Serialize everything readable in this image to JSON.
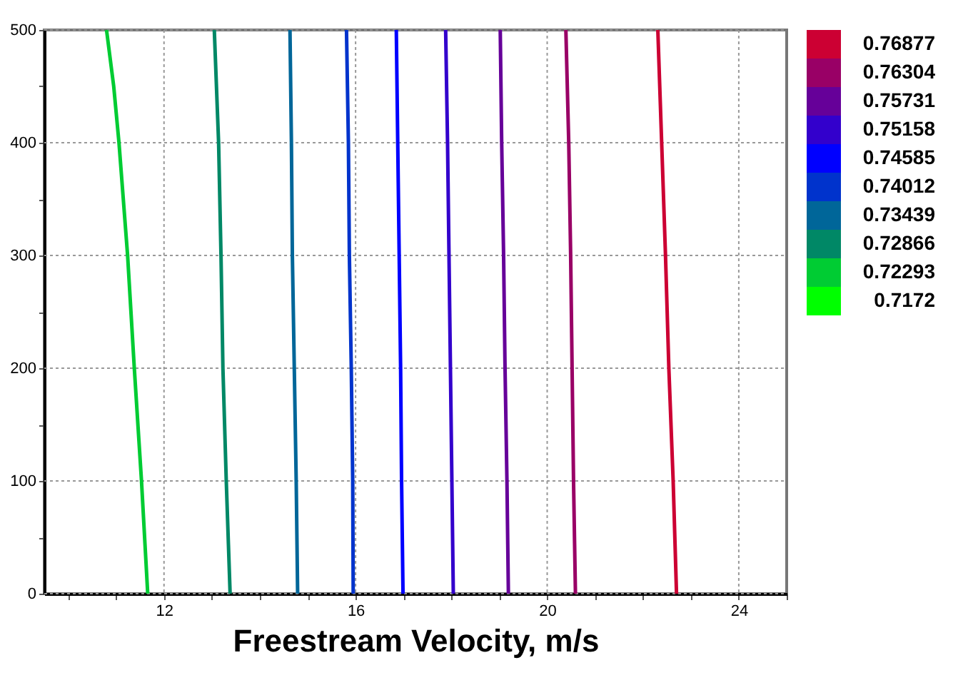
{
  "chart_data": {
    "type": "line",
    "xlabel": "Freestream Velocity, m/s",
    "xlim": [
      9.5,
      25
    ],
    "ylim": [
      0,
      500
    ],
    "xticks": [
      {
        "value": 10,
        "label": null
      },
      {
        "value": 11,
        "label": null
      },
      12,
      {
        "value": 13,
        "label": null
      },
      {
        "value": 14,
        "label": null
      },
      {
        "value": 15,
        "label": null
      },
      16,
      {
        "value": 17,
        "label": null
      },
      {
        "value": 18,
        "label": null
      },
      {
        "value": 19,
        "label": null
      },
      20,
      {
        "value": 21,
        "label": null
      },
      {
        "value": 22,
        "label": null
      },
      {
        "value": 23,
        "label": null
      },
      24,
      {
        "value": 25,
        "label": null
      }
    ],
    "yticks": [
      0,
      {
        "value": 50,
        "label": null
      },
      100,
      {
        "value": 150,
        "label": null
      },
      200,
      {
        "value": 250,
        "label": null
      },
      300,
      {
        "value": 350,
        "label": null
      },
      400,
      {
        "value": 450,
        "label": null
      },
      500
    ],
    "grid": true,
    "legend": "right",
    "marker": "none",
    "line_style": "solid",
    "series": [
      {
        "name": "0.76877",
        "color": "#cc0033",
        "x": [
          22.7,
          22.63,
          22.54,
          22.47,
          22.39,
          22.31
        ],
        "values": [
          0,
          100,
          200,
          300,
          400,
          500
        ]
      },
      {
        "name": "0.76304",
        "color": "#990066",
        "x": [
          20.59,
          20.55,
          20.52,
          20.49,
          20.45,
          20.39
        ],
        "values": [
          0,
          100,
          200,
          300,
          400,
          500
        ]
      },
      {
        "name": "0.75731",
        "color": "#660099",
        "x": [
          19.19,
          19.16,
          19.12,
          19.09,
          19.05,
          19.02
        ],
        "values": [
          0,
          100,
          200,
          300,
          400,
          500
        ]
      },
      {
        "name": "0.75158",
        "color": "#3300cc",
        "x": [
          18.04,
          18.01,
          17.98,
          17.95,
          17.92,
          17.88
        ],
        "values": [
          0,
          100,
          200,
          300,
          400,
          500
        ]
      },
      {
        "name": "0.74585",
        "color": "#0000ff",
        "x": [
          16.99,
          16.96,
          16.94,
          16.91,
          16.88,
          16.85
        ],
        "values": [
          0,
          100,
          200,
          300,
          400,
          500
        ]
      },
      {
        "name": "0.74012",
        "color": "#0033cc",
        "x": [
          15.95,
          15.94,
          15.91,
          15.87,
          15.85,
          15.81
        ],
        "values": [
          0,
          100,
          200,
          300,
          400,
          500
        ]
      },
      {
        "name": "0.73439",
        "color": "#006699",
        "x": [
          14.79,
          14.76,
          14.72,
          14.68,
          14.66,
          14.63
        ],
        "values": [
          0,
          100,
          200,
          300,
          400,
          500
        ]
      },
      {
        "name": "0.72866",
        "color": "#008866",
        "x": [
          13.38,
          13.3,
          13.23,
          13.19,
          13.14,
          13.05
        ],
        "values": [
          0,
          100,
          200,
          300,
          400,
          500
        ]
      },
      {
        "name": "0.72293",
        "color": "#00cc33",
        "x": [
          11.66,
          11.53,
          11.38,
          11.24,
          11.06,
          10.95,
          10.8
        ],
        "values": [
          0,
          100,
          200,
          300,
          400,
          450,
          500
        ]
      },
      {
        "name": "0.7172",
        "color": "#00ff00"
      }
    ]
  }
}
